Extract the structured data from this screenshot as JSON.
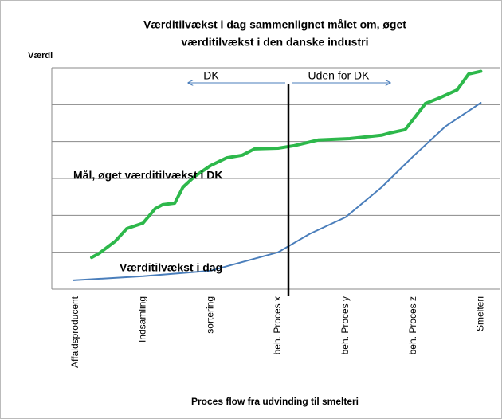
{
  "chart_data": {
    "type": "line",
    "title": [
      "Værditilvækst i dag sammenlignet målet om, øget",
      "værditilvækst i den danske industri"
    ],
    "ylabel": "Værdi",
    "xlabel": "Proces flow fra udvinding til smelteri",
    "categories": [
      "Affaldsproducent",
      "Indsamling",
      "sortering",
      "beh. Proces x",
      "beh. Proces y",
      "beh. Proces z",
      "Smelteri"
    ],
    "xlim": [
      -0.35,
      6.29
    ],
    "ylim": [
      0,
      6
    ],
    "yticks": [
      0,
      1,
      2,
      3,
      4,
      5,
      6
    ],
    "grid": true,
    "annotations": {
      "dk": "DK",
      "outside": "Uden for DK",
      "goal": "Mål, øget værditilvækst i DK",
      "today": "Værditilvækst i dag"
    },
    "series": [
      {
        "name": "Mål, øget værditilvækst i DK",
        "color": "#2db84b",
        "width": 4,
        "x": [
          0.24,
          0.35,
          0.59,
          0.76,
          1.0,
          1.18,
          1.29,
          1.47,
          1.59,
          1.76,
          2.0,
          2.24,
          2.47,
          2.65,
          3.0,
          3.24,
          3.59,
          4.06,
          4.53,
          4.65,
          4.88,
          5.0,
          5.18,
          5.41,
          5.65,
          5.82,
          6.0
        ],
        "values": [
          0.86,
          0.97,
          1.3,
          1.64,
          1.79,
          2.18,
          2.29,
          2.33,
          2.76,
          3.05,
          3.35,
          3.56,
          3.63,
          3.8,
          3.82,
          3.89,
          4.04,
          4.08,
          4.17,
          4.23,
          4.32,
          4.6,
          5.03,
          5.2,
          5.4,
          5.83,
          5.9
        ]
      },
      {
        "name": "Værditilvækst i dag",
        "color": "#4a7ebb",
        "width": 2,
        "x": [
          -0.03,
          1.0,
          2.0,
          3.0,
          3.47,
          4.0,
          4.53,
          5.0,
          5.47,
          6.0
        ],
        "values": [
          0.24,
          0.35,
          0.5,
          1.0,
          1.5,
          1.95,
          2.76,
          3.6,
          4.4,
          5.05
        ]
      }
    ]
  }
}
